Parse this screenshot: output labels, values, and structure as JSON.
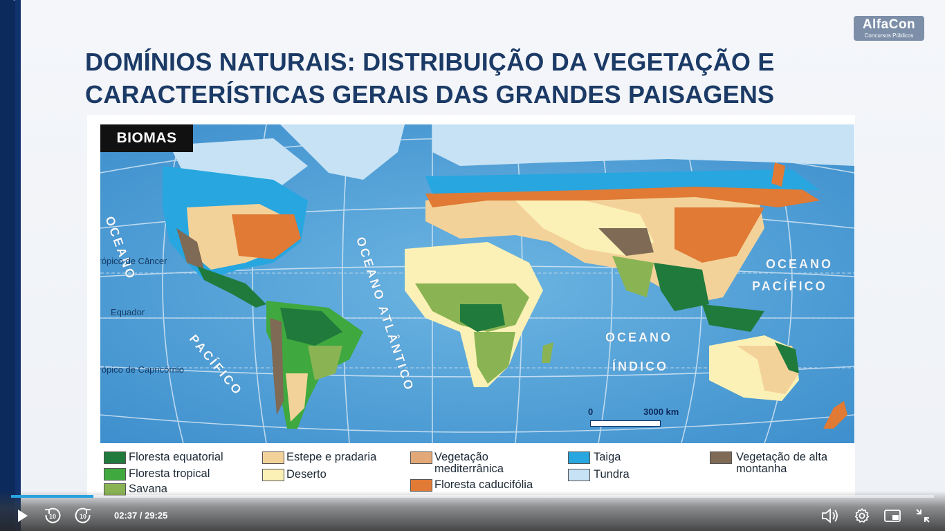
{
  "logo": {
    "name": "AlfaCon",
    "sub": "Concursos Públicos"
  },
  "title_line1": "DOMÍNIOS NATURAIS: DISTRIBUIÇÃO DA VEGETAÇÃO E",
  "title_line2": "CARACTERÍSTICAS GERAIS DAS GRANDES PAISAGENS",
  "map": {
    "badge": "BIOMAS",
    "labels": {
      "ocean_atlantico": "OCEANO ATLÂNTICO",
      "oceano_pacifico_right_1": "OCEANO",
      "oceano_pacifico_right_2": "PACÍFICO",
      "oceano_indico_1": "OCEANO",
      "oceano_indico_2": "ÍNDICO",
      "oceano_left": "OCEANO",
      "pacifico_left": "PACÍFICO",
      "tropico_cancer": "Trópico de Câncer",
      "equador": "Equador",
      "tropico_capricornio": "Trópico de Capricórnio"
    },
    "scale": {
      "zero": "0",
      "km": "3000 km"
    }
  },
  "legend": [
    {
      "label": "Floresta equatorial",
      "color": "#1f7a3c"
    },
    {
      "label": "Floresta tropical",
      "color": "#3fa83e"
    },
    {
      "label": "Savana",
      "color": "#8ab453"
    },
    {
      "label": "Estepe e pradaria",
      "color": "#f3d29a"
    },
    {
      "label": "Deserto",
      "color": "#fbf1b6"
    },
    {
      "label_line1": "Vegetação",
      "label_line2": "mediterrânica",
      "color": "#e2a877"
    },
    {
      "label": "Floresta caducifólia",
      "color": "#e07a34"
    },
    {
      "label": "Taiga",
      "color": "#27a6e0"
    },
    {
      "label": "Tundra",
      "color": "#c7e2f5"
    },
    {
      "label_line1": "Vegetação de alta",
      "label_line2": "montanha",
      "color": "#7e6a55"
    }
  ],
  "player": {
    "time": "02:37 / 29:25",
    "progress": 0.089,
    "rewind_label": "10",
    "forward_label": "10",
    "accent": "#29a3e0"
  }
}
